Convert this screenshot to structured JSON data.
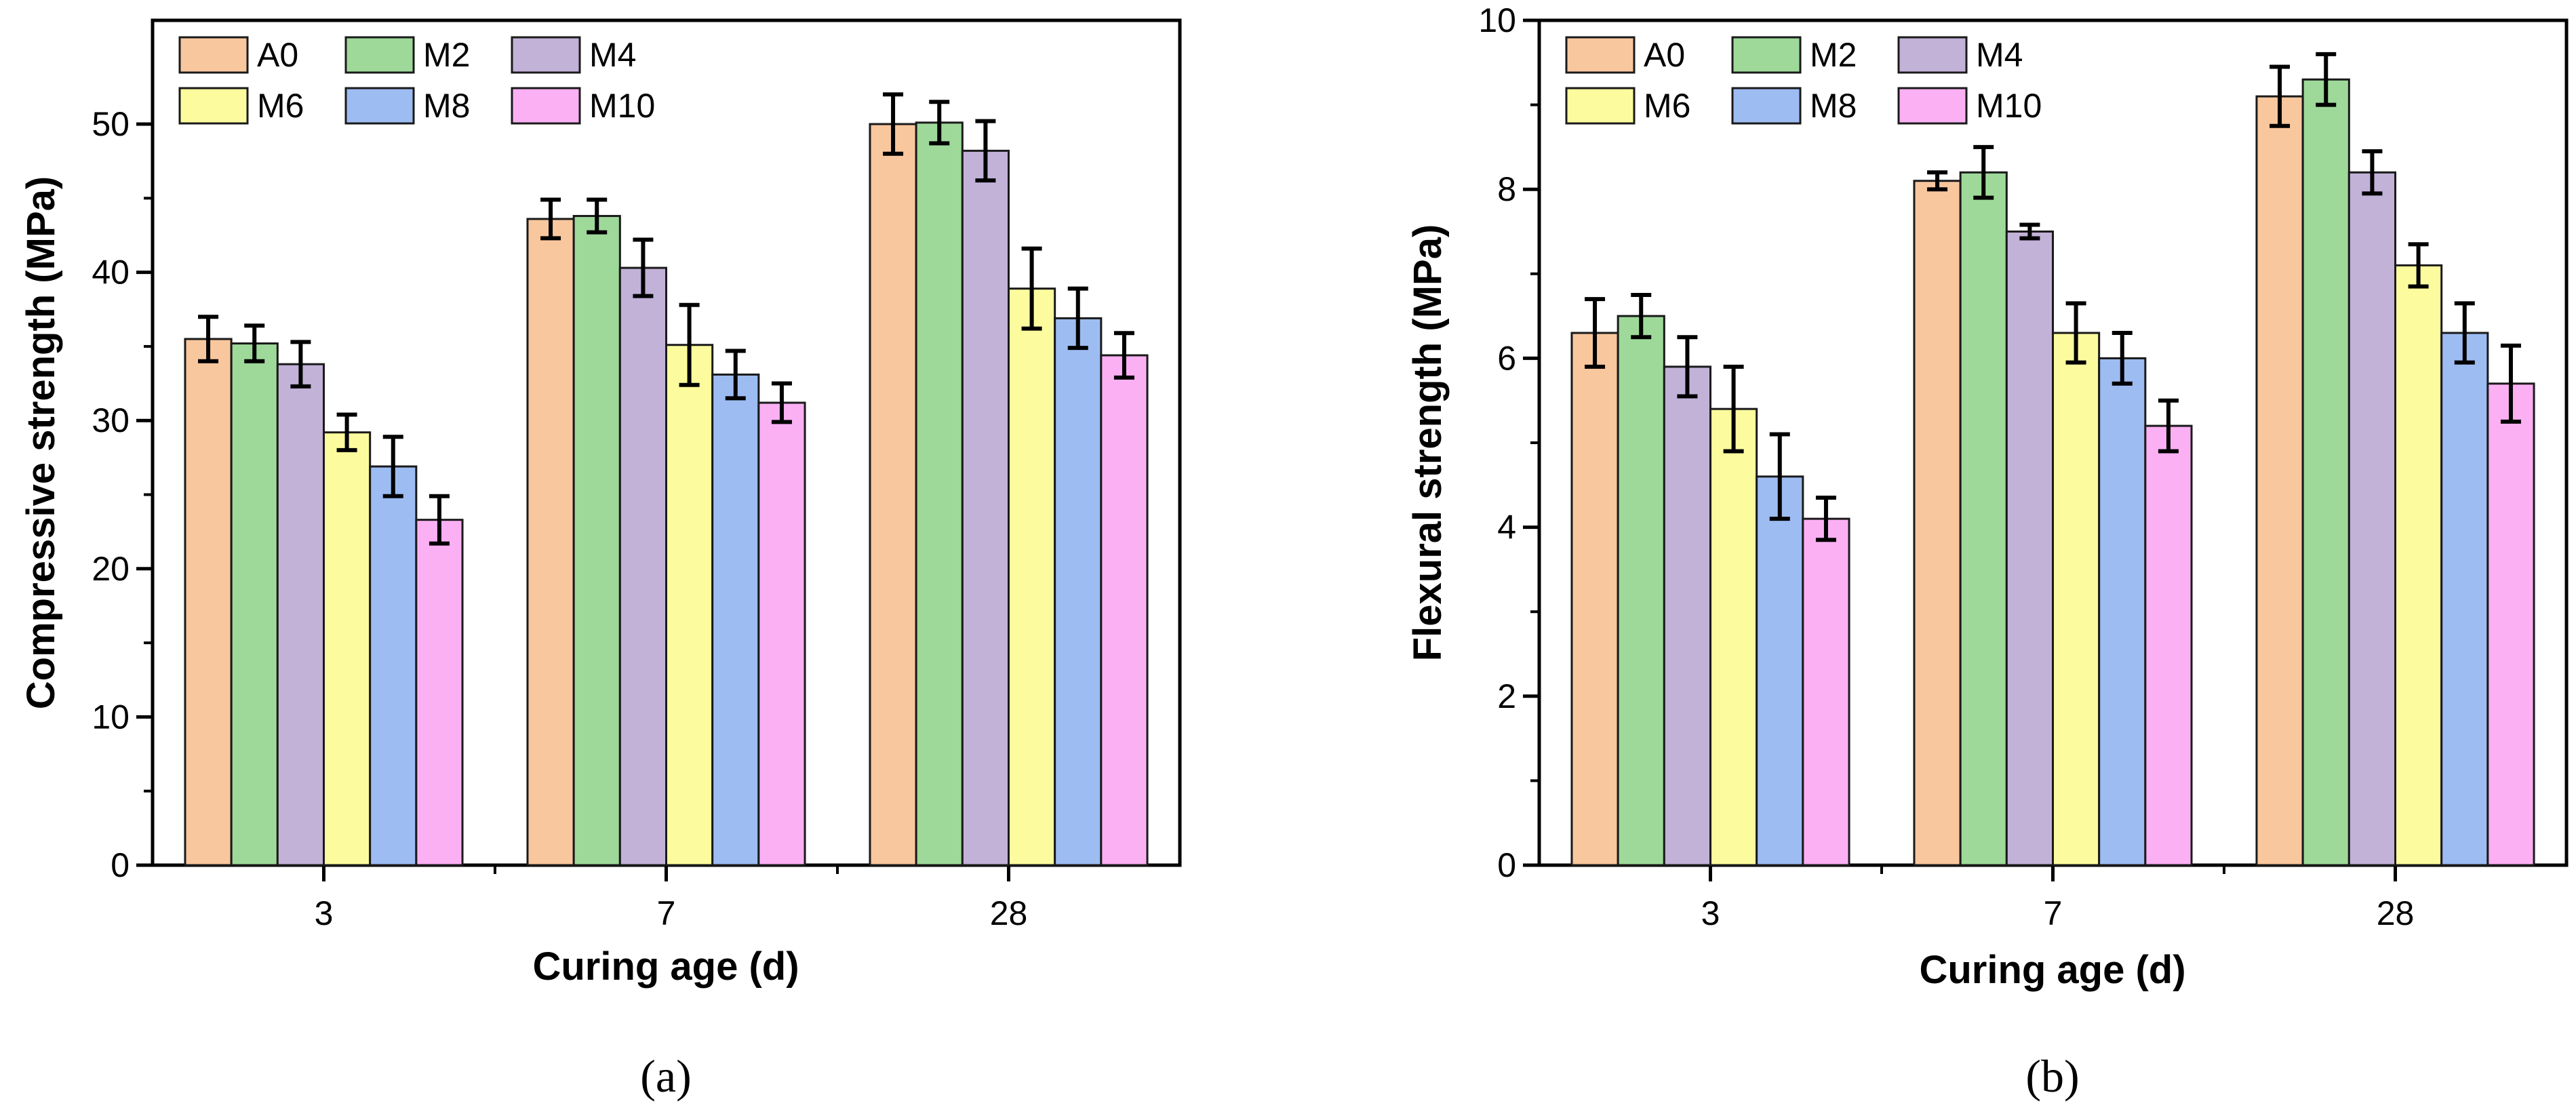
{
  "series_meta": [
    {
      "name": "A0",
      "color": "#F9C79E"
    },
    {
      "name": "M2",
      "color": "#9ED99A"
    },
    {
      "name": "M4",
      "color": "#C2B2D8"
    },
    {
      "name": "M6",
      "color": "#FCFC9E"
    },
    {
      "name": "M8",
      "color": "#9DBCF2"
    },
    {
      "name": "M10",
      "color": "#FBB0F4"
    }
  ],
  "chart_data": [
    {
      "type": "bar",
      "caption": "(a)",
      "title": "",
      "xlabel": "Curing age (d)",
      "ylabel": "Compressive strength (MPa)",
      "categories": [
        "3",
        "7",
        "28"
      ],
      "ylim": [
        0,
        57
      ],
      "yticks": [
        0,
        10,
        20,
        30,
        40,
        50
      ],
      "legend_position": "top-left",
      "series": [
        {
          "name": "A0",
          "values": [
            35.5,
            43.6,
            50.0
          ],
          "errors": [
            1.5,
            1.3,
            2.0
          ]
        },
        {
          "name": "M2",
          "values": [
            35.2,
            43.8,
            50.1
          ],
          "errors": [
            1.2,
            1.1,
            1.4
          ]
        },
        {
          "name": "M4",
          "values": [
            33.8,
            40.3,
            48.2
          ],
          "errors": [
            1.5,
            1.9,
            2.0
          ]
        },
        {
          "name": "M6",
          "values": [
            29.2,
            35.1,
            38.9
          ],
          "errors": [
            1.2,
            2.7,
            2.7
          ]
        },
        {
          "name": "M8",
          "values": [
            26.9,
            33.1,
            36.9
          ],
          "errors": [
            2.0,
            1.6,
            2.0
          ]
        },
        {
          "name": "M10",
          "values": [
            23.3,
            31.2,
            34.4
          ],
          "errors": [
            1.6,
            1.3,
            1.5
          ]
        }
      ]
    },
    {
      "type": "bar",
      "caption": "(b)",
      "title": "",
      "xlabel": "Curing age (d)",
      "ylabel": "Flexural strength (MPa)",
      "categories": [
        "3",
        "7",
        "28"
      ],
      "ylim": [
        0,
        10
      ],
      "yticks": [
        0,
        2,
        4,
        6,
        8,
        10
      ],
      "legend_position": "top-left",
      "series": [
        {
          "name": "A0",
          "values": [
            6.3,
            8.1,
            9.1
          ],
          "errors": [
            0.4,
            0.1,
            0.35
          ]
        },
        {
          "name": "M2",
          "values": [
            6.5,
            8.2,
            9.3
          ],
          "errors": [
            0.25,
            0.3,
            0.3
          ]
        },
        {
          "name": "M4",
          "values": [
            5.9,
            7.5,
            8.2
          ],
          "errors": [
            0.35,
            0.08,
            0.25
          ]
        },
        {
          "name": "M6",
          "values": [
            5.4,
            6.3,
            7.1
          ],
          "errors": [
            0.5,
            0.35,
            0.25
          ]
        },
        {
          "name": "M8",
          "values": [
            4.6,
            6.0,
            6.3
          ],
          "errors": [
            0.5,
            0.3,
            0.35
          ]
        },
        {
          "name": "M10",
          "values": [
            4.1,
            5.2,
            5.7
          ],
          "errors": [
            0.25,
            0.3,
            0.45
          ]
        }
      ]
    }
  ]
}
